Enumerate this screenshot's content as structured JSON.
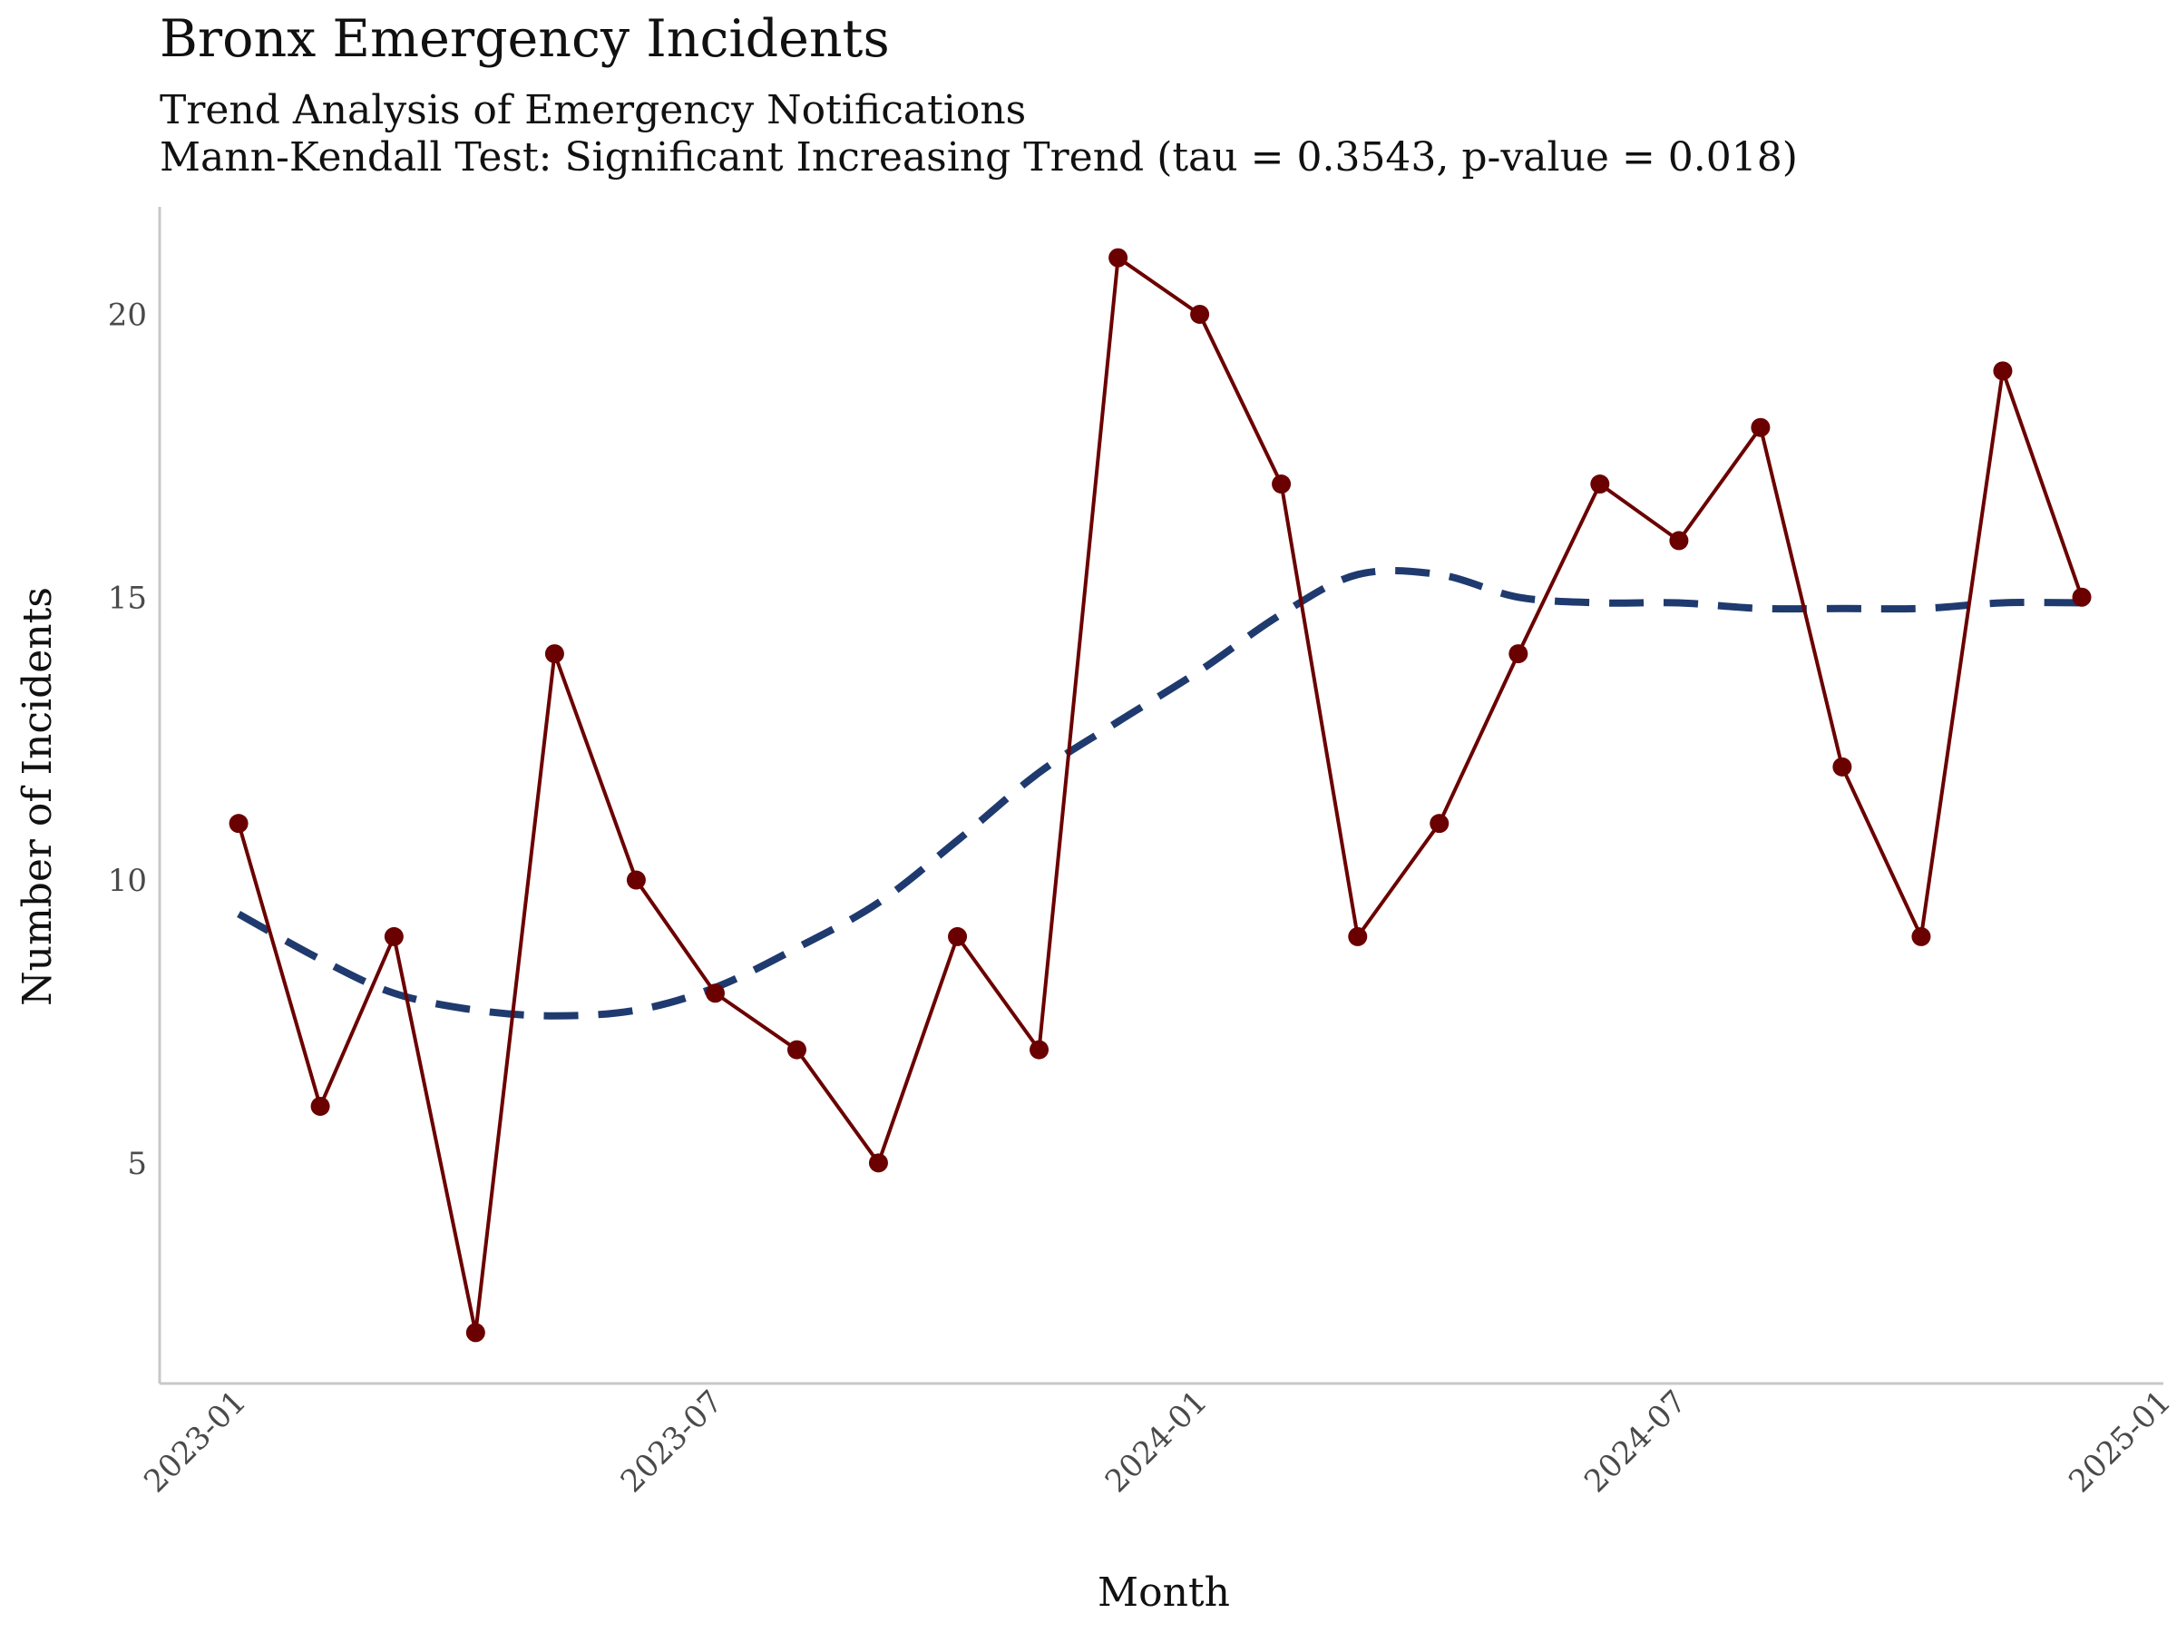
{
  "chart_data": {
    "type": "line",
    "title": "Bronx Emergency Incidents",
    "subtitle": [
      "Trend Analysis of Emergency Notifications",
      "Mann-Kendall Test: Significant Increasing Trend (tau = 0.3543, p-value = 0.018)"
    ],
    "xlabel": "Month",
    "ylabel": "Number of Incidents",
    "x": [
      "2023-01",
      "2023-02",
      "2023-03",
      "2023-04",
      "2023-05",
      "2023-06",
      "2023-07",
      "2023-08",
      "2023-09",
      "2023-10",
      "2023-11",
      "2023-12",
      "2024-01",
      "2024-02",
      "2024-03",
      "2024-04",
      "2024-05",
      "2024-06",
      "2024-07",
      "2024-08",
      "2024-09",
      "2024-10",
      "2024-11",
      "2024-12"
    ],
    "series": [
      {
        "type": "line+points",
        "color": "#6b0000",
        "values": [
          11,
          6,
          9,
          2,
          14,
          10,
          8,
          7,
          5,
          9,
          7,
          21,
          20,
          17,
          9,
          11,
          14,
          17,
          16,
          18,
          12,
          9,
          19,
          15
        ]
      },
      {
        "type": "smooth-trend-dashed",
        "color": "#1f3a6e",
        "values": [
          9.4,
          8.6,
          8.0,
          7.7,
          7.6,
          7.7,
          8.1,
          8.8,
          9.6,
          10.7,
          11.9,
          12.8,
          13.7,
          14.7,
          15.4,
          15.4,
          15.0,
          14.9,
          14.9,
          14.8,
          14.8,
          14.8,
          14.9,
          14.9
        ]
      }
    ],
    "x_ticks": [
      "2023-01",
      "2023-07",
      "2024-01",
      "2024-07",
      "2025-01"
    ],
    "y_ticks": [
      5,
      10,
      15,
      20
    ],
    "ylim": [
      1.1,
      21.9
    ],
    "xlim": [
      "2022-12-02",
      "2025-01-01"
    ],
    "grid": false,
    "legend": "none"
  }
}
